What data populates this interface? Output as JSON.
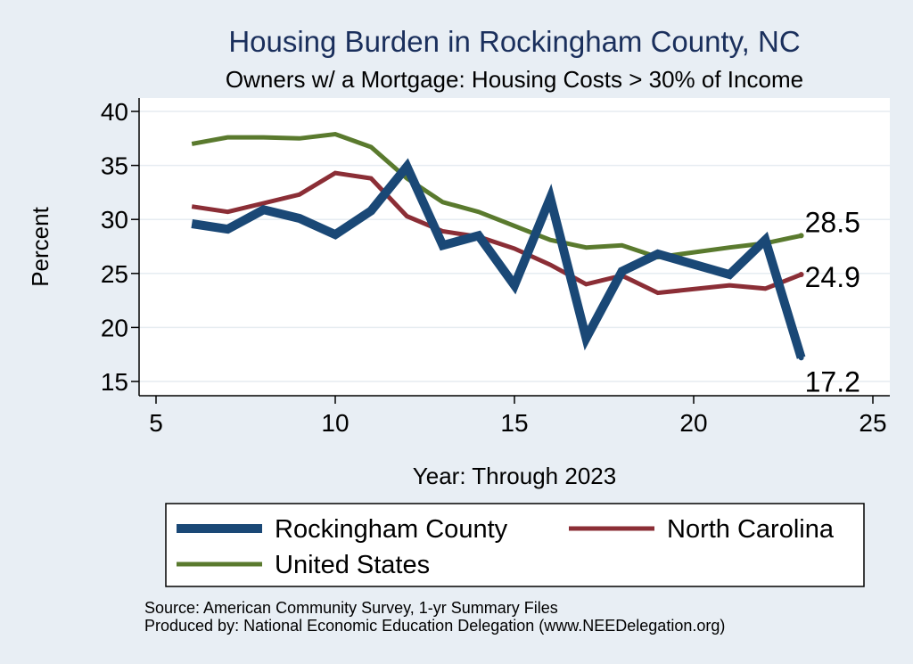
{
  "chart_data": {
    "type": "line",
    "title": "Housing Burden in Rockingham County, NC",
    "subtitle": "Owners w/ a Mortgage: Housing Costs > 30% of Income",
    "xlabel": "Year: Through 2023",
    "ylabel": "Percent",
    "xlim": [
      5,
      25
    ],
    "ylim": [
      15,
      40
    ],
    "xticks": [
      5,
      10,
      15,
      20,
      25
    ],
    "yticks": [
      15,
      20,
      25,
      30,
      35,
      40
    ],
    "grid": true,
    "legend_position": "bottom",
    "x": [
      6,
      7,
      8,
      9,
      10,
      11,
      12,
      13,
      14,
      15,
      16,
      17,
      18,
      19,
      21,
      22,
      23
    ],
    "series": [
      {
        "name": "Rockingham County",
        "color": "#1a4876",
        "width": "thick",
        "values": [
          29.6,
          29.1,
          30.9,
          30.1,
          28.6,
          30.8,
          34.9,
          27.6,
          28.5,
          23.9,
          32.0,
          19.0,
          25.2,
          26.8,
          24.9,
          28.1,
          17.2
        ],
        "end_label": "17.2"
      },
      {
        "name": "North Carolina",
        "color": "#8b2e36",
        "width": "medium",
        "values": [
          31.2,
          30.7,
          31.5,
          32.3,
          34.3,
          33.8,
          30.3,
          28.9,
          28.4,
          27.3,
          25.8,
          24.0,
          24.8,
          23.2,
          23.9,
          23.6,
          24.9
        ],
        "end_label": "24.9"
      },
      {
        "name": "United States",
        "color": "#5a7a2e",
        "width": "medium",
        "values": [
          37.0,
          37.6,
          37.6,
          37.5,
          37.9,
          36.7,
          33.8,
          31.6,
          30.7,
          29.4,
          28.1,
          27.4,
          27.6,
          26.5,
          27.4,
          27.8,
          28.5
        ],
        "end_label": "28.5"
      }
    ],
    "notes": [
      "Source: American Community Survey, 1-yr Summary Files",
      "Produced by: National Economic Education Delegation (www.NEEDelegation.org)"
    ]
  }
}
